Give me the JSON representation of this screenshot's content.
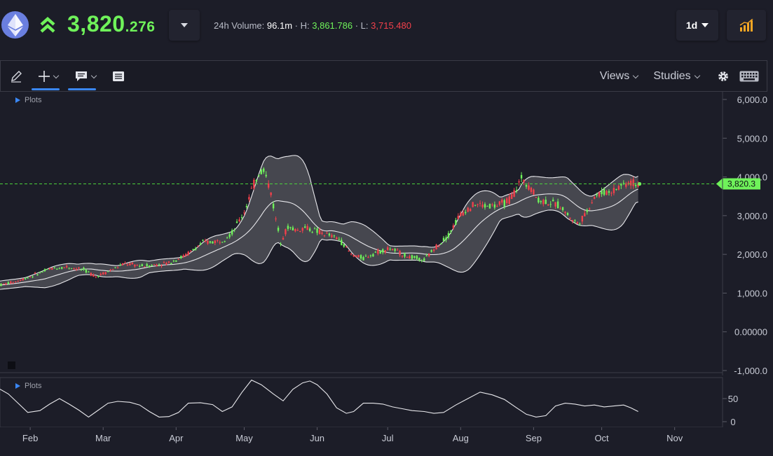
{
  "header": {
    "price_int": "3,820",
    "price_dec": ".276",
    "volume_label": "24h Volume:",
    "volume_value": "96.1m",
    "high_label": "· H:",
    "high_value": "3,861.786",
    "low_label": "· L:",
    "low_value": "3,715.480",
    "timeframe": "1d",
    "price_color": "#6ff25a",
    "low_color": "#f2404b"
  },
  "toolbar": {
    "views_label": "Views",
    "studies_label": "Studies"
  },
  "panels": {
    "main_plots_label": "Plots",
    "osc_plots_label": "Plots"
  },
  "chart_data": [
    {
      "type": "candlestick",
      "title": "",
      "y_ticks": [
        "6,000.0",
        "5,000.0",
        "4,000.0",
        "3,000.0",
        "2,000.0",
        "1,000.0",
        "0.00000",
        "-1,000.0"
      ],
      "y_tick_values": [
        6000,
        5000,
        4000,
        3000,
        2000,
        1000,
        0,
        -1000
      ],
      "ylim": [
        -1000,
        6000
      ],
      "x_ticks": [
        "Feb",
        "Mar",
        "Apr",
        "May",
        "Jun",
        "Jul",
        "Aug",
        "Sep",
        "Oct",
        "Nov"
      ],
      "current_price_label": "3,820.3",
      "current_price": 3820.3,
      "indicator": "bollinger-bands",
      "colors": {
        "up": "#6ff25a",
        "down": "#f2404b",
        "band_fill": "#4a4b53",
        "band_line": "#e8e8ec",
        "price_line": "#4bd13c"
      },
      "close_anchors": [
        [
          0,
          1200
        ],
        [
          7,
          1300
        ],
        [
          14,
          1450
        ],
        [
          21,
          1620
        ],
        [
          28,
          1680
        ],
        [
          35,
          1600
        ],
        [
          40,
          1430
        ],
        [
          45,
          1560
        ],
        [
          52,
          1760
        ],
        [
          59,
          1700
        ],
        [
          63,
          1720
        ],
        [
          70,
          1780
        ],
        [
          77,
          1980
        ],
        [
          84,
          2300
        ],
        [
          91,
          2350
        ],
        [
          96,
          2550
        ],
        [
          101,
          3100
        ],
        [
          104,
          3650
        ],
        [
          107,
          4100
        ],
        [
          109,
          4200
        ],
        [
          112,
          3600
        ],
        [
          114,
          2900
        ],
        [
          116,
          2350
        ],
        [
          119,
          2700
        ],
        [
          123,
          2620
        ],
        [
          126,
          2700
        ],
        [
          133,
          2550
        ],
        [
          140,
          2400
        ],
        [
          145,
          2000
        ],
        [
          150,
          1900
        ],
        [
          155,
          2050
        ],
        [
          161,
          2150
        ],
        [
          168,
          1950
        ],
        [
          175,
          1850
        ],
        [
          180,
          2200
        ],
        [
          185,
          2500
        ],
        [
          189,
          2950
        ],
        [
          192,
          3150
        ],
        [
          196,
          3300
        ],
        [
          200,
          3250
        ],
        [
          205,
          3250
        ],
        [
          210,
          3400
        ],
        [
          213,
          3700
        ],
        [
          215,
          3950
        ],
        [
          218,
          3800
        ],
        [
          222,
          3400
        ],
        [
          226,
          3350
        ],
        [
          231,
          3250
        ],
        [
          235,
          2950
        ],
        [
          238,
          2800
        ],
        [
          241,
          3000
        ],
        [
          245,
          3500
        ],
        [
          249,
          3600
        ],
        [
          253,
          3650
        ],
        [
          256,
          3800
        ],
        [
          259,
          3850
        ],
        [
          263,
          3820
        ]
      ]
    },
    {
      "type": "line",
      "title": "",
      "y_ticks": [
        "50",
        "0"
      ],
      "y_tick_values": [
        50,
        0
      ],
      "ylim": [
        -5,
        100
      ],
      "values": [
        [
          0,
          72
        ],
        [
          4,
          60
        ],
        [
          8,
          40
        ],
        [
          12,
          20
        ],
        [
          17,
          24
        ],
        [
          21,
          38
        ],
        [
          25,
          50
        ],
        [
          29,
          38
        ],
        [
          33,
          25
        ],
        [
          37,
          10
        ],
        [
          41,
          25
        ],
        [
          45,
          40
        ],
        [
          49,
          44
        ],
        [
          54,
          42
        ],
        [
          58,
          36
        ],
        [
          62,
          22
        ],
        [
          66,
          10
        ],
        [
          70,
          11
        ],
        [
          74,
          20
        ],
        [
          78,
          40
        ],
        [
          83,
          41
        ],
        [
          88,
          37
        ],
        [
          92,
          22
        ],
        [
          96,
          32
        ],
        [
          100,
          63
        ],
        [
          104,
          90
        ],
        [
          108,
          80
        ],
        [
          113,
          60
        ],
        [
          117,
          45
        ],
        [
          121,
          70
        ],
        [
          125,
          84
        ],
        [
          128,
          88
        ],
        [
          131,
          80
        ],
        [
          135,
          60
        ],
        [
          139,
          30
        ],
        [
          143,
          18
        ],
        [
          146,
          22
        ],
        [
          150,
          40
        ],
        [
          154,
          40
        ],
        [
          158,
          38
        ],
        [
          162,
          32
        ],
        [
          166,
          28
        ],
        [
          170,
          24
        ],
        [
          175,
          22
        ],
        [
          179,
          18
        ],
        [
          183,
          20
        ],
        [
          188,
          36
        ],
        [
          193,
          50
        ],
        [
          198,
          64
        ],
        [
          203,
          58
        ],
        [
          208,
          48
        ],
        [
          213,
          30
        ],
        [
          217,
          16
        ],
        [
          221,
          10
        ],
        [
          225,
          13
        ],
        [
          229,
          34
        ],
        [
          233,
          40
        ],
        [
          237,
          38
        ],
        [
          241,
          34
        ],
        [
          245,
          36
        ],
        [
          249,
          32
        ],
        [
          253,
          34
        ],
        [
          257,
          36
        ],
        [
          260,
          30
        ],
        [
          263,
          22
        ]
      ],
      "xlabel": ""
    }
  ]
}
